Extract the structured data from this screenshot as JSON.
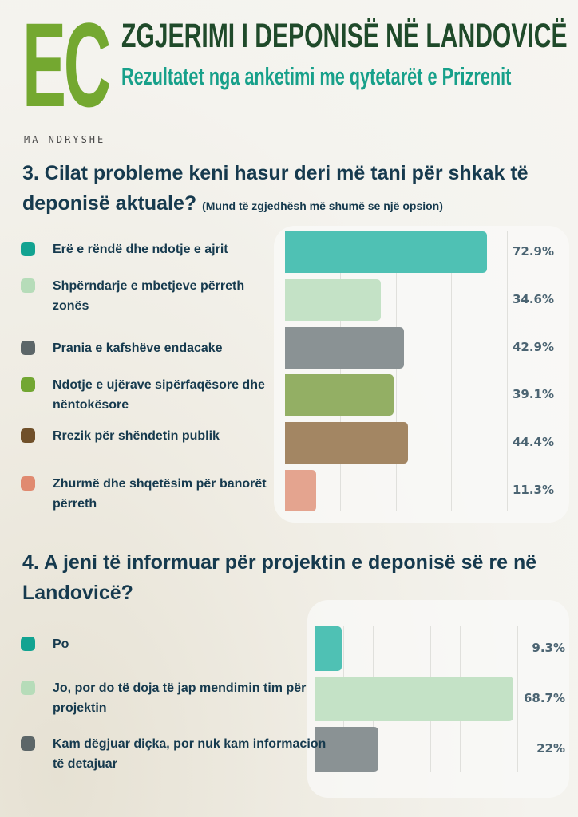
{
  "logo": {
    "letters": "EC",
    "tagline": "MA NDRYSHE"
  },
  "header": {
    "title": "ZGJERIMI I DEPONISË NË LANDOVICË",
    "subtitle": "Rezultatet nga anketimi me qytetarët e Prizrenit"
  },
  "chart_data": [
    {
      "type": "bar",
      "orientation": "horizontal",
      "title": "3. Cilat probleme keni hasur deri më tani për shkak të deponisë aktuale?",
      "note": "(Mund të zgjedhësh më shumë se një opsion)",
      "xlim": [
        0,
        100
      ],
      "categories": [
        "Erë e rëndë dhe ndotje e ajrit",
        "Shpërndarje e mbetjeve përreth zonës",
        "Prania e kafshëve endacake",
        "Ndotje e ujërave sipërfaqësore dhe nëntokësore",
        "Rrezik për shëndetin publik",
        "Zhurmë dhe shqetësim për banorët përreth"
      ],
      "values": [
        72.9,
        34.6,
        42.9,
        39.1,
        44.4,
        11.3
      ],
      "labels": [
        "72.9%",
        "34.6%",
        "42.9%",
        "39.1%",
        "44.4%",
        "11.3%"
      ],
      "colors": [
        "#4fc1b4",
        "#c4e2c6",
        "#8a9294",
        "#93af64",
        "#a38663",
        "#e4a48f"
      ],
      "legend_colors": [
        "#12a391",
        "#b6dcb9",
        "#5c6668",
        "#72a632",
        "#70502a",
        "#e08a70"
      ]
    },
    {
      "type": "bar",
      "orientation": "horizontal",
      "title": "4. A jeni të informuar për projektin e deponisë së re në Landovicë?",
      "xlim": [
        0,
        100
      ],
      "categories": [
        "Po",
        "Jo, por do të doja të jap mendimin tim për projektin",
        "Kam dëgjuar diçka, por nuk kam informacion të detajuar"
      ],
      "values": [
        9.3,
        68.7,
        22
      ],
      "labels": [
        "9.3%",
        "68.7%",
        "22%"
      ],
      "colors": [
        "#4fc1b4",
        "#c4e2c6",
        "#8a9294"
      ],
      "legend_colors": [
        "#12a391",
        "#b6dcb9",
        "#5c6668"
      ]
    }
  ]
}
